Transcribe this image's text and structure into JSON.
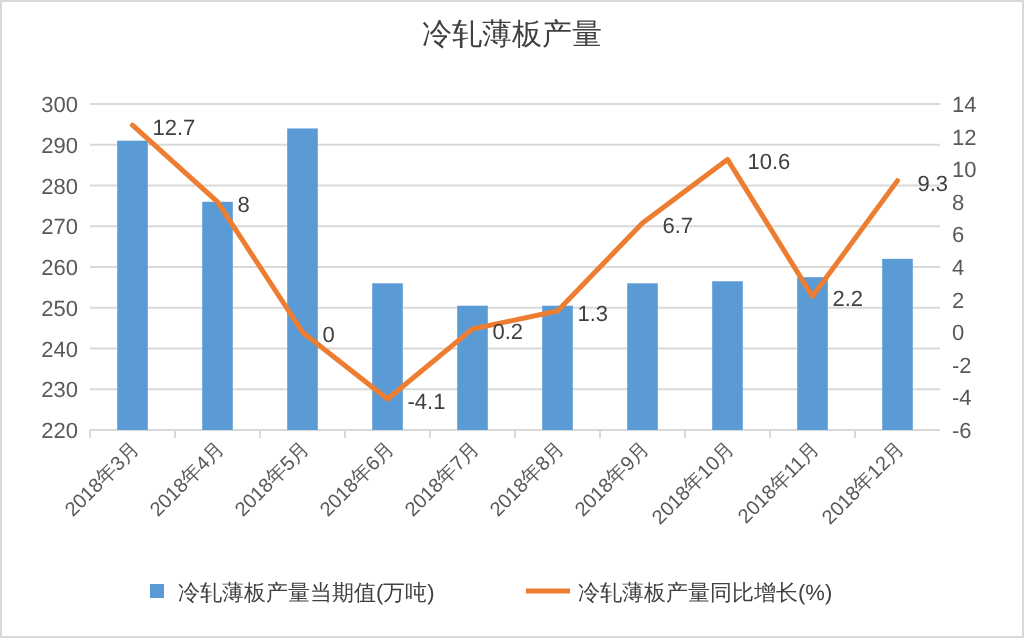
{
  "chart_data": {
    "type": "bar",
    "title": "冷轧薄板产量",
    "categories": [
      "2018年3月",
      "2018年4月",
      "2018年5月",
      "2018年6月",
      "2018年7月",
      "2018年8月",
      "2018年9月",
      "2018年10月",
      "2018年11月",
      "2018年12月"
    ],
    "series": [
      {
        "name": "冷轧薄板产量当期值(万吨)",
        "color": "#5b9bd5",
        "values": [
          291,
          276,
          294,
          256,
          250.5,
          250.5,
          256,
          256.5,
          257.5,
          262
        ]
      },
      {
        "name": "冷轧薄板产量同比增长(%)",
        "type": "line",
        "axis": "y2",
        "color": "#ed7d31",
        "values": [
          12.7,
          8,
          0,
          -4.1,
          0.2,
          1.3,
          6.7,
          10.6,
          2.2,
          9.3
        ],
        "value_labels": [
          "12.7",
          "8",
          "0",
          "-4.1",
          "0.2",
          "1.3",
          "6.7",
          "10.6",
          "2.2",
          "9.3"
        ]
      }
    ],
    "ylim": [
      220,
      300
    ],
    "yticks": [
      220,
      230,
      240,
      250,
      260,
      270,
      280,
      290,
      300
    ],
    "y2lim": [
      -6,
      14
    ],
    "y2ticks": [
      -6,
      -4,
      -2,
      0,
      2,
      4,
      6,
      8,
      10,
      12,
      14
    ],
    "grid": "y",
    "legend": "bottom"
  }
}
